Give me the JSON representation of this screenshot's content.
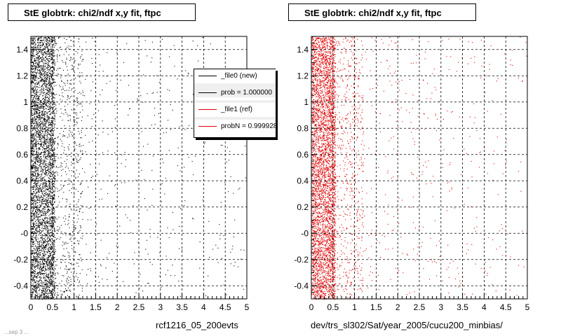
{
  "panels": [
    {
      "title": "StE globtrk: chi2/ndf x,y fit, ftpc",
      "xlabel": "rcf1216_05_200evts",
      "point_color": "#000000"
    },
    {
      "title": "StE globtrk: chi2/ndf x,y fit, ftpc",
      "xlabel": "dev/trs_sl302/Sat/year_2005/cucu200_minbias/",
      "point_color": "#e00000"
    }
  ],
  "legend": {
    "entries": [
      {
        "label": "_file0 (new)",
        "color": "#000000"
      },
      {
        "label": "prob = 1.000000",
        "color": "#000000"
      },
      {
        "label": "_file1 (ref)",
        "color": "#e00000"
      },
      {
        "label": "probN = 0.999928",
        "color": "#e00000"
      }
    ]
  },
  "footer": "...sep  3 ...",
  "chart_data": [
    {
      "type": "scatter",
      "title": "StE globtrk: chi2/ndf x,y fit, ftpc",
      "xlabel": "rcf1216_05_200evts",
      "ylabel": "",
      "xlim": [
        0,
        5
      ],
      "ylim": [
        -0.5,
        1.5
      ],
      "x_ticks": [
        "0",
        "0.5",
        "1",
        "1.5",
        "2",
        "2.5",
        "3",
        "3.5",
        "4",
        "4.5",
        "5"
      ],
      "y_ticks": [
        "-0.4",
        "-0.2",
        "-0",
        "0.2",
        "0.4",
        "0.6",
        "0.8",
        "1",
        "1.2",
        "1.4"
      ],
      "grid": true,
      "series": [
        {
          "name": "_file0 (new)",
          "color": "#000000",
          "distribution": "dense near x=0-0.5, decaying toward x=5, uniform in y"
        }
      ]
    },
    {
      "type": "scatter",
      "title": "StE globtrk: chi2/ndf x,y fit, ftpc",
      "xlabel": "dev/trs_sl302/Sat/year_2005/cucu200_minbias/",
      "ylabel": "",
      "xlim": [
        0,
        5
      ],
      "ylim": [
        -0.5,
        1.5
      ],
      "x_ticks": [
        "0",
        "0.5",
        "1",
        "1.5",
        "2",
        "2.5",
        "3",
        "3.5",
        "4",
        "4.5",
        "5"
      ],
      "y_ticks": [
        "-0.4",
        "-0.2",
        "-0",
        "0.2",
        "0.4",
        "0.6",
        "0.8",
        "1",
        "1.2",
        "1.4"
      ],
      "grid": true,
      "series": [
        {
          "name": "_file1 (ref)",
          "color": "#e00000",
          "distribution": "dense near x=0-0.5, decaying toward x=5, uniform in y"
        }
      ]
    }
  ]
}
